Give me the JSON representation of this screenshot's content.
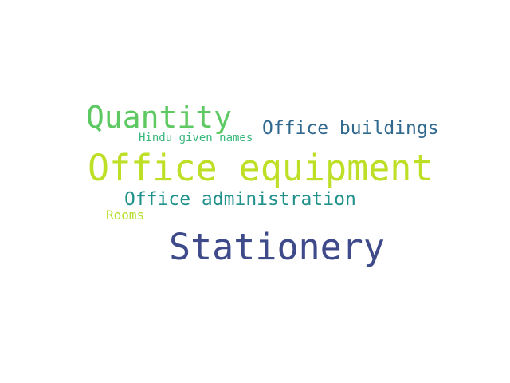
{
  "words": [
    {
      "id": "quantity",
      "text": "Quantity",
      "color": "#5ec962"
    },
    {
      "id": "office_buildings",
      "text": "Office buildings",
      "color": "#31688e"
    },
    {
      "id": "hindu_given_names",
      "text": "Hindu given names",
      "color": "#35b779"
    },
    {
      "id": "office_equipment",
      "text": "Office equipment",
      "color": "#bddf26"
    },
    {
      "id": "office_administration",
      "text": "Office administration",
      "color": "#21918c"
    },
    {
      "id": "rooms",
      "text": "Rooms",
      "color": "#b5de2b"
    },
    {
      "id": "stationery",
      "text": "Stationery",
      "color": "#3e4a89"
    }
  ]
}
